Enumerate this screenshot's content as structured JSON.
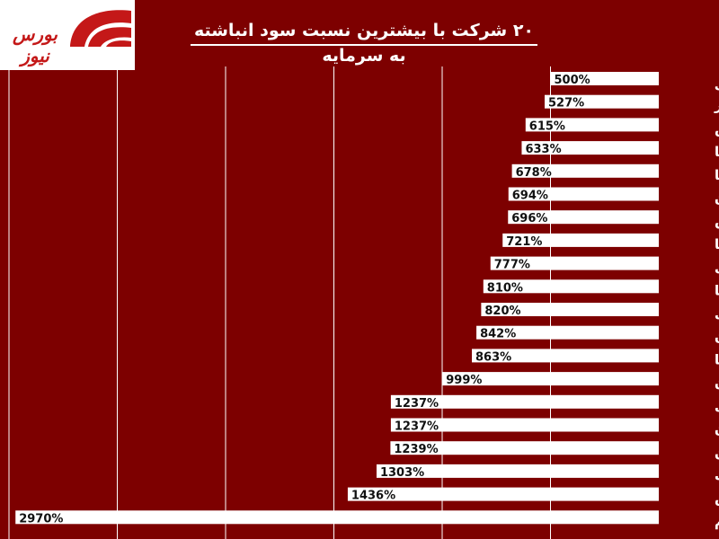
{
  "header": {
    "title": "۲۰ شرکت با بیشترین نسبت سود انباشته به سرمایه",
    "logo_text": "بورس نیوز"
  },
  "colors": {
    "background": "#7d0000",
    "bar": "#ffffff",
    "grid": "#ffffff",
    "label": "#ffffff",
    "value_label": "#111111",
    "logo_red": "#c41818"
  },
  "chart_data": {
    "type": "bar",
    "orientation": "horizontal",
    "title": "۲۰ شرکت با بیشترین نسبت سود انباشته به سرمایه",
    "xlabel": "",
    "ylabel": "",
    "xlim": [
      0,
      3000
    ],
    "grid": true,
    "legend": "none",
    "categories": [
      "کبافق",
      "لخزر",
      "پارس",
      "بایکا",
      "غویتا",
      "مارون",
      "شوش",
      "فپنتا",
      "دقاضی",
      "بمپنا",
      "دشیری",
      "سبهان",
      "شسپا",
      "شتهران",
      "نوری",
      "شگامرن",
      "شفن",
      "شخارک",
      "زاگرس",
      "قاروم"
    ],
    "values": [
      500,
      527,
      615,
      633,
      678,
      694,
      696,
      721,
      777,
      810,
      820,
      842,
      863,
      999,
      1237,
      1237,
      1239,
      1303,
      1436,
      2970
    ],
    "value_labels": [
      "500%",
      "527%",
      "615%",
      "633%",
      "678%",
      "694%",
      "696%",
      "721%",
      "777%",
      "810%",
      "820%",
      "842%",
      "863%",
      "999%",
      "1237%",
      "1237%",
      "1239%",
      "1303%",
      "1436%",
      "2970%"
    ]
  }
}
